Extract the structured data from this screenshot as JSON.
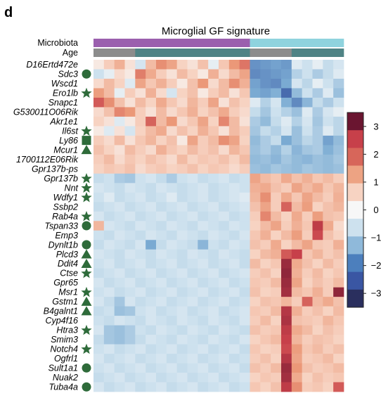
{
  "panel_label": "d",
  "chart_data": {
    "type": "heatmap",
    "title": "Microglial GF signature",
    "annotation_tracks": [
      {
        "label": "Microbiota",
        "groups": [
          {
            "count": 15,
            "color": "#9b5fae"
          },
          {
            "count": 9,
            "color": "#8fd3de"
          }
        ]
      },
      {
        "label": "Age",
        "groups": [
          {
            "count": 4,
            "color": "#8c8c8c"
          },
          {
            "count": 11,
            "color": "#4f8385"
          },
          {
            "count": 4,
            "color": "#8c8c8c"
          },
          {
            "count": 5,
            "color": "#4f8385"
          }
        ]
      }
    ],
    "n_columns": 24,
    "rows": [
      {
        "gene": "D16Ertd472e",
        "marker": "",
        "values": [
          0.2,
          0.6,
          1.1,
          0.3,
          -0.4,
          0.9,
          1.6,
          1.3,
          0.5,
          0.3,
          0.8,
          -0.2,
          0.7,
          1.5,
          1.9,
          -1.8,
          -1.7,
          -1.6,
          -1.7,
          -0.3,
          -0.5,
          -0.2,
          -0.6,
          -0.4
        ]
      },
      {
        "gene": "Sdc3",
        "marker": "circle",
        "values": [
          -0.5,
          -0.2,
          0.4,
          0.2,
          1.8,
          1.2,
          0.6,
          0.3,
          0.9,
          0.5,
          0.2,
          1.1,
          0.4,
          0.9,
          1.3,
          -1.9,
          -1.8,
          -1.7,
          -1.6,
          -0.8,
          -0.5,
          -0.9,
          -0.6,
          -0.3
        ]
      },
      {
        "gene": "Wscd1",
        "marker": "",
        "values": [
          0.4,
          0.9,
          0.5,
          -0.3,
          1.3,
          0.7,
          1.1,
          0.6,
          0.2,
          0.8,
          1.5,
          0.4,
          0.9,
          1.6,
          1.1,
          -1.6,
          -1.8,
          -1.9,
          -1.5,
          -0.4,
          -0.7,
          -0.2,
          -0.5,
          -0.9
        ]
      },
      {
        "gene": "Ero1lb",
        "marker": "star",
        "values": [
          1.4,
          0.9,
          -0.2,
          0.6,
          0.3,
          1.1,
          0.4,
          -0.4,
          0.5,
          0.8,
          0.2,
          0.6,
          0.9,
          0.3,
          0.7,
          -1.5,
          -1.6,
          -1.4,
          -2.3,
          -1.2,
          -0.5,
          -0.9,
          -0.3,
          -1.1
        ]
      },
      {
        "gene": "Snapc1",
        "marker": "",
        "values": [
          2.2,
          1.6,
          0.8,
          0.3,
          0.9,
          0.5,
          1.2,
          0.7,
          0.4,
          1.0,
          0.6,
          1.3,
          0.3,
          0.8,
          0.5,
          -0.3,
          -0.8,
          -0.4,
          -1.4,
          -1.9,
          -1.3,
          -0.6,
          -0.9,
          -0.5
        ]
      },
      {
        "gene": "G530011O06Rik",
        "marker": "",
        "values": [
          0.4,
          0.8,
          1.7,
          1.5,
          0.6,
          0.3,
          0.9,
          0.4,
          0.7,
          1.1,
          0.5,
          0.8,
          1.2,
          0.6,
          0.4,
          -0.6,
          -1.0,
          -0.5,
          -0.8,
          -1.1,
          -0.3,
          -0.9,
          -0.4,
          -0.2
        ]
      },
      {
        "gene": "Akr1e1",
        "marker": "",
        "values": [
          0.5,
          0.3,
          -0.3,
          0.2,
          0.6,
          2.1,
          0.9,
          1.5,
          0.4,
          0.7,
          1.3,
          0.5,
          1.7,
          0.9,
          0.3,
          -0.9,
          -1.2,
          -0.6,
          -0.3,
          -0.8,
          -0.4,
          -1.0,
          -0.5,
          -0.7
        ]
      },
      {
        "gene": "Il6st",
        "marker": "star",
        "values": [
          0.2,
          -0.3,
          0.3,
          -0.4,
          0.5,
          0.9,
          1.2,
          0.4,
          0.8,
          0.5,
          1.1,
          0.7,
          0.3,
          0.9,
          0.6,
          -1.0,
          -0.6,
          -0.8,
          -0.4,
          -1.1,
          -0.5,
          -0.9,
          -0.3,
          -0.7
        ]
      },
      {
        "gene": "Ly86",
        "marker": "square",
        "values": [
          0.6,
          0.4,
          0.9,
          0.3,
          0.7,
          1.0,
          0.5,
          0.8,
          0.2,
          1.3,
          0.6,
          0.9,
          1.6,
          1.3,
          0.5,
          -1.2,
          -0.9,
          -0.6,
          -1.5,
          -1.1,
          -0.7,
          -0.9,
          -1.6,
          -1.2
        ]
      },
      {
        "gene": "Mcur1",
        "marker": "triangle",
        "values": [
          0.8,
          0.5,
          0.3,
          0.9,
          0.6,
          0.4,
          1.1,
          0.7,
          0.5,
          0.9,
          0.6,
          0.8,
          0.4,
          1.0,
          0.7,
          -1.1,
          -0.9,
          -1.2,
          -0.8,
          -1.3,
          -1.0,
          -0.9,
          -1.4,
          -1.1
        ]
      },
      {
        "gene": "1700112E06Rik",
        "marker": "",
        "values": [
          0.6,
          0.9,
          0.4,
          0.7,
          0.5,
          0.8,
          0.6,
          0.4,
          0.9,
          0.5,
          0.7,
          0.6,
          0.8,
          0.5,
          0.9,
          -1.2,
          -1.1,
          -1.3,
          -1.0,
          -1.2,
          -1.3,
          -1.1,
          -1.2,
          -1.0
        ]
      },
      {
        "gene": "Gpr137b-ps",
        "marker": "",
        "values": [
          0.5,
          0.7,
          0.6,
          0.8,
          0.4,
          0.6,
          0.7,
          0.5,
          0.6,
          0.8,
          0.5,
          0.7,
          0.6,
          0.4,
          0.6,
          -1.1,
          -1.2,
          -1.0,
          -1.1,
          -1.2,
          -1.0,
          -1.1,
          -1.2,
          -1.1
        ]
      },
      {
        "gene": "Gpr137b",
        "marker": "star",
        "values": [
          -0.6,
          -0.5,
          -0.9,
          -1.0,
          -0.5,
          -0.4,
          -0.6,
          -0.9,
          -0.5,
          -0.4,
          -0.6,
          -0.5,
          -0.4,
          -0.6,
          -0.5,
          1.3,
          0.9,
          0.7,
          1.2,
          0.8,
          1.1,
          0.7,
          0.9,
          0.6
        ]
      },
      {
        "gene": "Nnt",
        "marker": "star",
        "values": [
          -0.4,
          -0.5,
          -0.6,
          -0.4,
          -0.5,
          -0.6,
          -0.4,
          -0.5,
          -0.6,
          -0.5,
          -0.4,
          -0.6,
          -0.5,
          -0.4,
          -0.5,
          1.1,
          1.2,
          0.8,
          0.6,
          1.3,
          0.9,
          1.2,
          0.7,
          1.0
        ]
      },
      {
        "gene": "Wdfy1",
        "marker": "star",
        "values": [
          -0.5,
          -0.3,
          -0.6,
          -0.5,
          -0.4,
          -0.6,
          -0.5,
          -0.3,
          -0.6,
          -0.5,
          -0.4,
          -0.6,
          -0.5,
          -0.4,
          -0.3,
          1.0,
          1.6,
          0.6,
          1.2,
          0.7,
          1.3,
          0.9,
          0.6,
          1.1
        ]
      },
      {
        "gene": "Ssbp2",
        "marker": "",
        "values": [
          -0.6,
          -0.5,
          -0.4,
          -0.6,
          -0.5,
          -0.4,
          -0.6,
          -0.5,
          -0.4,
          -0.6,
          -0.5,
          -0.4,
          -0.6,
          -0.5,
          -0.4,
          0.8,
          1.3,
          0.6,
          2.1,
          0.9,
          1.4,
          0.5,
          0.8,
          1.0
        ]
      },
      {
        "gene": "Rab4a",
        "marker": "star",
        "values": [
          -0.4,
          -0.6,
          -0.5,
          -0.4,
          -0.6,
          -0.5,
          -0.4,
          -0.6,
          -0.5,
          -0.4,
          -0.6,
          -0.5,
          -0.4,
          -0.6,
          -0.5,
          0.6,
          1.7,
          0.9,
          0.5,
          1.2,
          0.6,
          1.4,
          0.8,
          0.7
        ]
      },
      {
        "gene": "Tspan33",
        "marker": "circle",
        "values": [
          1.0,
          -0.4,
          -0.5,
          -0.6,
          -0.4,
          -0.5,
          -0.6,
          -0.4,
          -0.5,
          -0.6,
          -0.4,
          -0.5,
          -0.6,
          -0.4,
          -0.5,
          0.5,
          0.9,
          1.3,
          0.6,
          1.1,
          0.7,
          2.6,
          1.2,
          0.4
        ]
      },
      {
        "gene": "Emp3",
        "marker": "",
        "values": [
          -0.5,
          -0.6,
          -0.4,
          -0.5,
          -0.6,
          -0.4,
          -0.5,
          -0.6,
          -0.4,
          -0.5,
          -0.6,
          -0.4,
          -0.5,
          -0.6,
          -0.4,
          0.7,
          1.1,
          0.5,
          0.9,
          1.4,
          0.6,
          2.4,
          0.8,
          0.5
        ]
      },
      {
        "gene": "Dynlt1b",
        "marker": "circle",
        "values": [
          -0.6,
          -0.4,
          -0.5,
          -0.6,
          -0.4,
          -1.5,
          -0.6,
          -0.4,
          -0.5,
          -0.6,
          -1.3,
          -0.5,
          -0.6,
          -0.4,
          -0.5,
          0.8,
          0.6,
          1.2,
          0.5,
          0.9,
          1.3,
          0.7,
          0.6,
          1.1
        ]
      },
      {
        "gene": "Plcd3",
        "marker": "triangle",
        "values": [
          -0.4,
          -0.5,
          -0.6,
          -0.4,
          -0.5,
          -0.6,
          -0.4,
          -0.5,
          -0.6,
          -0.4,
          -0.5,
          -0.6,
          -0.4,
          -0.5,
          -0.6,
          0.5,
          0.9,
          1.1,
          2.2,
          2.5,
          0.7,
          1.0,
          0.6,
          0.8
        ]
      },
      {
        "gene": "Ddit4",
        "marker": "triangle",
        "values": [
          -0.5,
          -0.4,
          -0.6,
          -0.5,
          -0.4,
          -0.6,
          -0.5,
          -0.4,
          -0.6,
          -0.5,
          -0.4,
          -0.6,
          -0.5,
          -0.4,
          -0.6,
          0.9,
          0.5,
          0.7,
          3.0,
          1.2,
          0.8,
          0.5,
          0.9,
          0.6
        ]
      },
      {
        "gene": "Ctse",
        "marker": "star",
        "values": [
          -0.6,
          -0.5,
          -0.4,
          -0.6,
          -0.5,
          -0.4,
          -0.6,
          -0.5,
          -0.4,
          -0.6,
          -0.5,
          -0.4,
          -0.6,
          -0.5,
          -0.4,
          0.6,
          0.8,
          0.5,
          3.1,
          1.1,
          0.6,
          0.9,
          0.5,
          0.7
        ]
      },
      {
        "gene": "Gpr65",
        "marker": "",
        "values": [
          -0.4,
          -0.6,
          -0.5,
          -0.4,
          -0.6,
          -0.5,
          -0.4,
          -0.6,
          -0.5,
          -0.4,
          -0.6,
          -0.5,
          -0.4,
          -0.6,
          -0.5,
          0.7,
          0.6,
          0.9,
          3.0,
          1.3,
          0.5,
          0.8,
          0.6,
          0.9
        ]
      },
      {
        "gene": "Msr1",
        "marker": "star",
        "values": [
          -0.5,
          -0.4,
          -0.6,
          -0.5,
          -0.4,
          -0.6,
          -0.5,
          -0.4,
          -0.6,
          -0.5,
          -0.4,
          -0.6,
          -0.5,
          -0.4,
          -0.6,
          0.8,
          0.5,
          0.6,
          2.9,
          0.9,
          0.7,
          1.1,
          0.6,
          3.1
        ]
      },
      {
        "gene": "Gstm1",
        "marker": "triangle",
        "values": [
          -0.4,
          -0.6,
          -1.0,
          -0.4,
          -0.6,
          -0.5,
          -0.4,
          -0.6,
          -0.5,
          -0.4,
          -0.6,
          -0.5,
          -0.4,
          -0.6,
          -0.5,
          0.5,
          0.8,
          0.7,
          1.0,
          0.6,
          2.1,
          0.9,
          1.2,
          0.8
        ]
      },
      {
        "gene": "B4galnt1",
        "marker": "triangle",
        "values": [
          -0.6,
          -0.5,
          -1.1,
          -1.0,
          -0.5,
          -0.4,
          -0.6,
          -0.5,
          -0.4,
          -0.6,
          -0.5,
          -0.4,
          -0.6,
          -0.5,
          -0.4,
          0.7,
          0.6,
          0.9,
          2.7,
          1.1,
          0.6,
          0.8,
          0.5,
          0.9
        ]
      },
      {
        "gene": "Cyp4f16",
        "marker": "",
        "values": [
          -0.5,
          -0.6,
          -0.4,
          -0.5,
          -0.6,
          -0.4,
          -0.5,
          -0.6,
          -0.4,
          -0.5,
          -0.6,
          -0.4,
          -0.5,
          -0.6,
          -0.4,
          0.6,
          0.9,
          0.5,
          2.8,
          0.8,
          0.7,
          0.6,
          1.0,
          0.7
        ]
      },
      {
        "gene": "Htra3",
        "marker": "star",
        "values": [
          -0.4,
          -1.0,
          -1.1,
          -0.9,
          -0.5,
          -0.6,
          -0.4,
          -0.5,
          -0.6,
          -0.4,
          -0.5,
          -0.6,
          -0.4,
          -0.5,
          -0.6,
          0.8,
          0.6,
          0.7,
          2.6,
          1.2,
          0.9,
          0.5,
          0.8,
          0.6
        ]
      },
      {
        "gene": "Smim3",
        "marker": "",
        "values": [
          -0.6,
          -1.0,
          -1.1,
          -0.9,
          -0.6,
          -0.4,
          -0.5,
          -0.6,
          -0.4,
          -0.5,
          -0.6,
          -0.4,
          -0.5,
          -0.6,
          -0.4,
          0.5,
          0.7,
          0.9,
          2.5,
          1.0,
          0.6,
          0.8,
          0.7,
          0.5
        ]
      },
      {
        "gene": "Notch4",
        "marker": "star",
        "values": [
          -0.5,
          -0.4,
          -0.6,
          -0.5,
          -0.4,
          -0.6,
          -0.5,
          -0.4,
          -0.6,
          -0.5,
          -0.4,
          -0.6,
          -0.5,
          -0.4,
          -0.6,
          0.7,
          0.5,
          0.6,
          2.4,
          1.4,
          0.7,
          0.9,
          0.6,
          0.8
        ]
      },
      {
        "gene": "Ogfrl1",
        "marker": "",
        "values": [
          -0.4,
          -0.6,
          -0.5,
          -0.4,
          -0.6,
          -0.5,
          -0.4,
          -0.6,
          -0.5,
          -0.4,
          -0.6,
          -0.5,
          -0.4,
          -0.6,
          -0.5,
          0.6,
          0.8,
          0.5,
          2.7,
          1.3,
          0.6,
          0.7,
          0.9,
          0.5
        ]
      },
      {
        "gene": "Sult1a1",
        "marker": "circle",
        "values": [
          -0.5,
          -0.4,
          -0.6,
          -0.5,
          -0.4,
          -0.6,
          -0.5,
          -0.4,
          -0.6,
          -0.5,
          -0.4,
          -0.6,
          -0.5,
          -0.4,
          -0.6,
          0.8,
          0.6,
          0.9,
          3.0,
          1.5,
          0.8,
          0.6,
          0.7,
          0.9
        ]
      },
      {
        "gene": "Nuak2",
        "marker": "",
        "values": [
          -0.6,
          -0.5,
          -0.4,
          -0.6,
          -0.5,
          -0.4,
          -0.6,
          -0.5,
          -0.4,
          -0.6,
          -0.5,
          -0.4,
          -0.6,
          -0.5,
          -0.4,
          0.5,
          0.7,
          0.6,
          2.9,
          1.2,
          0.5,
          0.8,
          0.6,
          0.7
        ]
      },
      {
        "gene": "Tuba4a",
        "marker": "circle",
        "values": [
          -0.4,
          -0.6,
          -0.5,
          -0.4,
          -0.6,
          -0.5,
          -0.4,
          -0.6,
          -0.5,
          -0.4,
          -0.6,
          -0.5,
          -0.4,
          -0.6,
          -0.5,
          0.7,
          0.5,
          0.8,
          2.6,
          1.6,
          0.6,
          0.7,
          0.5,
          2.2
        ]
      }
    ],
    "color_scale": {
      "min": -3.5,
      "max": 3.5,
      "stops": [
        {
          "v": -3.5,
          "color": "#2a2f5e"
        },
        {
          "v": -2.5,
          "color": "#3b5ba5"
        },
        {
          "v": -1.5,
          "color": "#7aaad2"
        },
        {
          "v": -0.5,
          "color": "#cde1ee"
        },
        {
          "v": 0,
          "color": "#f7f7f7"
        },
        {
          "v": 0.5,
          "color": "#f7d3c2"
        },
        {
          "v": 1.5,
          "color": "#eb9878"
        },
        {
          "v": 2.5,
          "color": "#c7404a"
        },
        {
          "v": 3.5,
          "color": "#6a1530"
        }
      ]
    },
    "legend": {
      "position": "right",
      "ticks": [
        3,
        2,
        1,
        0,
        -1,
        -2,
        -3
      ],
      "tick_labels": [
        "3",
        "2",
        "1",
        "0",
        "−1",
        "−2",
        "−3"
      ],
      "colors": [
        "#6a1530",
        "#c7404a",
        "#d7665a",
        "#eda383",
        "#f7d3c2",
        "#f7f7f7",
        "#cde1ee",
        "#8fb9da",
        "#4c7fbd",
        "#3a56a3",
        "#2a2f5e"
      ]
    },
    "marker_color": "#2e6b3a"
  }
}
